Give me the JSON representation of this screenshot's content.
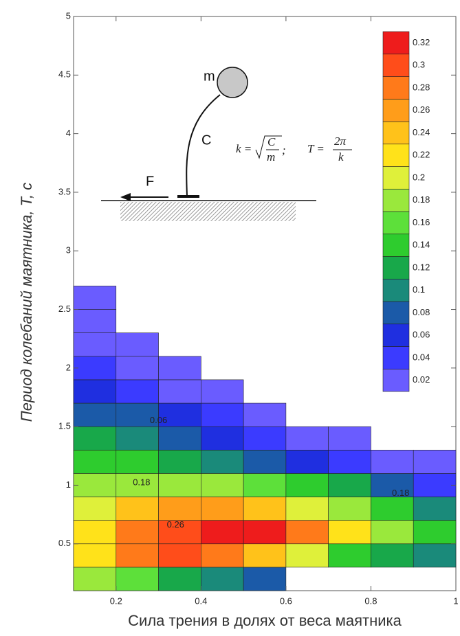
{
  "chart_data": {
    "type": "heatmap",
    "x_label": "Сила трения в долях от веса маятника",
    "y_label": "Период колебаний маятника, T, с",
    "xlim": [
      0.1,
      1
    ],
    "ylim": [
      0.1,
      5
    ],
    "xticks": [
      0.2,
      0.4,
      0.6,
      0.8,
      1
    ],
    "yticks": [
      0.5,
      1,
      1.5,
      2,
      2.5,
      3,
      3.5,
      4,
      4.5,
      5
    ],
    "x": [
      0.15,
      0.25,
      0.35,
      0.45,
      0.55,
      0.65,
      0.75,
      0.85,
      0.95
    ],
    "y": [
      0.2,
      0.4,
      0.6,
      0.8,
      1.0,
      1.2,
      1.4,
      1.6,
      1.8,
      2.0,
      2.2,
      2.4,
      2.6
    ],
    "z": [
      [
        0.18,
        0.16,
        0.12,
        0.1,
        0.08,
        null,
        null,
        null,
        null
      ],
      [
        0.22,
        0.28,
        0.3,
        0.28,
        0.24,
        0.2,
        0.15,
        0.12,
        0.1
      ],
      [
        0.22,
        0.28,
        0.31,
        0.33,
        0.32,
        0.28,
        0.22,
        0.18,
        0.14
      ],
      [
        0.2,
        0.24,
        0.26,
        0.26,
        0.24,
        0.21,
        0.18,
        0.14,
        0.1
      ],
      [
        0.18,
        0.19,
        0.19,
        0.18,
        0.16,
        0.15,
        0.12,
        0.09,
        0.05
      ],
      [
        0.15,
        0.14,
        0.13,
        0.11,
        0.09,
        0.07,
        0.05,
        0.03,
        0.02
      ],
      [
        0.12,
        0.11,
        0.09,
        0.07,
        0.05,
        0.03,
        0.02,
        null,
        null
      ],
      [
        0.09,
        0.08,
        0.06,
        0.04,
        0.02,
        null,
        null,
        null,
        null
      ],
      [
        0.07,
        0.05,
        0.03,
        0.02,
        null,
        null,
        null,
        null,
        null
      ],
      [
        0.05,
        0.03,
        0.02,
        null,
        null,
        null,
        null,
        null,
        null
      ],
      [
        0.03,
        0.02,
        null,
        null,
        null,
        null,
        null,
        null,
        null
      ],
      [
        0.02,
        null,
        null,
        null,
        null,
        null,
        null,
        null,
        null
      ],
      [
        0.02,
        null,
        null,
        null,
        null,
        null,
        null,
        null,
        null
      ]
    ],
    "levels": [
      0.02,
      0.04,
      0.06,
      0.08,
      0.1,
      0.12,
      0.14,
      0.16,
      0.18,
      0.2,
      0.22,
      0.24,
      0.26,
      0.28,
      0.3,
      0.32
    ],
    "level_colors": [
      "#6a5cff",
      "#3b3bff",
      "#1f2fe0",
      "#1b5aa8",
      "#1a8a7a",
      "#18a84a",
      "#2ecc2e",
      "#5de03a",
      "#9ae83c",
      "#dff03a",
      "#ffe21a",
      "#ffc21a",
      "#ff9d1a",
      "#ff7a1a",
      "#ff4d1a",
      "#ee1c1c"
    ],
    "contour_labels": [
      "0.06",
      "0.18",
      "0.18",
      "0.26"
    ],
    "inset": {
      "mass": "m",
      "spring": "C",
      "force": "F",
      "formula": {
        "k": "k =",
        "num": "C",
        "den": "m",
        "sep": ";",
        "T": "T =",
        "num2": "2π",
        "den2": "k"
      }
    }
  }
}
